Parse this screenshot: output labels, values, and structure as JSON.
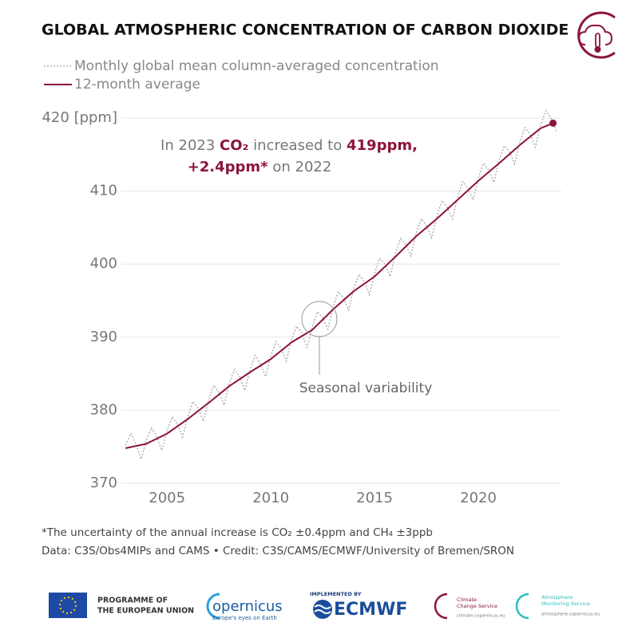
{
  "chart_data": {
    "type": "line",
    "title": "GLOBAL ATMOSPHERIC CONCENTRATION OF CARBON DIOXIDE",
    "series": [
      {
        "name": "Monthly global mean column-averaged concentration",
        "color": "#a8a8a8",
        "dashed": true,
        "x": [
          2003,
          2003.25,
          2003.5,
          2003.75,
          2004,
          2004.25,
          2004.5,
          2004.75,
          2005,
          2005.25,
          2005.5,
          2005.75,
          2006,
          2006.25,
          2006.5,
          2006.75,
          2007,
          2007.25,
          2007.5,
          2007.75,
          2008,
          2008.25,
          2008.5,
          2008.75,
          2009,
          2009.25,
          2009.5,
          2009.75,
          2010,
          2010.25,
          2010.5,
          2010.75,
          2011,
          2011.25,
          2011.5,
          2011.75,
          2012,
          2012.25,
          2012.5,
          2012.75,
          2013,
          2013.25,
          2013.5,
          2013.75,
          2014,
          2014.25,
          2014.5,
          2014.75,
          2015,
          2015.25,
          2015.5,
          2015.75,
          2016,
          2016.25,
          2016.5,
          2016.75,
          2017,
          2017.25,
          2017.5,
          2017.75,
          2018,
          2018.25,
          2018.5,
          2018.75,
          2019,
          2019.25,
          2019.5,
          2019.75,
          2020,
          2020.25,
          2020.5,
          2020.75,
          2021,
          2021.25,
          2021.5,
          2021.75,
          2022,
          2022.25,
          2022.5,
          2022.75,
          2023,
          2023.25,
          2023.5,
          2023.75
        ],
        "values": [
          375.2,
          376.8,
          375.4,
          373.3,
          375.8,
          377.6,
          376.4,
          374.5,
          377.2,
          379.1,
          378.1,
          376.3,
          379.2,
          381.2,
          380.2,
          378.5,
          381.4,
          383.4,
          382.5,
          380.7,
          383.7,
          385.6,
          384.6,
          382.7,
          385.6,
          387.5,
          386.4,
          384.6,
          387.4,
          389.4,
          388.5,
          386.7,
          389.7,
          391.5,
          390.5,
          388.6,
          391.4,
          393.5,
          392.7,
          391.1,
          394.2,
          396.2,
          395.4,
          393.7,
          396.7,
          398.6,
          397.6,
          395.8,
          398.7,
          400.8,
          400.0,
          398.3,
          401.4,
          403.5,
          402.7,
          401.1,
          404.2,
          406.2,
          405.3,
          403.6,
          406.6,
          408.7,
          407.8,
          406.2,
          409.2,
          411.3,
          410.4,
          408.8,
          411.8,
          413.8,
          412.9,
          411.2,
          414.2,
          416.2,
          415.4,
          413.7,
          416.7,
          418.7,
          417.8,
          416.0,
          419.0,
          421.0,
          420.0,
          418.2
        ]
      },
      {
        "name": "12-month average",
        "color": "#8b1538",
        "dashed": false,
        "x": [
          2003,
          2004,
          2005,
          2006,
          2007,
          2008,
          2009,
          2010,
          2011,
          2012,
          2013,
          2014,
          2015,
          2016,
          2017,
          2018,
          2019,
          2020,
          2021,
          2022,
          2023,
          2023.6
        ],
        "values": [
          374.8,
          375.4,
          376.8,
          378.8,
          381.0,
          383.3,
          385.2,
          387.0,
          389.3,
          391.0,
          393.8,
          396.3,
          398.3,
          401.0,
          403.8,
          406.2,
          408.8,
          411.4,
          413.8,
          416.3,
          418.6,
          419.3
        ]
      }
    ],
    "xlim": [
      2002.8,
      2024.0
    ],
    "xticks": [
      2005,
      2010,
      2015,
      2020
    ],
    "ylim": [
      370,
      420
    ],
    "yticks": [
      370,
      380,
      390,
      400,
      410,
      {
        "value": 420,
        "label": "420 [ppm]"
      }
    ],
    "grid": true,
    "annotation": {
      "line1": [
        "In 2023",
        "CO₂",
        "increased to",
        "419ppm,"
      ],
      "line2": [
        "+2.4ppm*",
        "on 2022"
      ]
    },
    "callout": "Seasonal variability",
    "footnote": "*The uncertainty of the annual increase is CO₂ ±0.4ppm and CH₄ ±3ppb",
    "credit": "Data: C3S/Obs4MIPs and CAMS • Credit: C3S/CAMS/ECMWF/University of Bremen/SRON"
  },
  "logos": {
    "eu": [
      "PROGRAMME OF",
      "THE EUROPEAN UNION"
    ],
    "copernicus": [
      "opernicus",
      "Europe's eyes on Earth"
    ],
    "ecmwf": [
      "IMPLEMENTED BY",
      "ECMWF"
    ],
    "c3s": [
      "Climate",
      "Change Service",
      "climate.copernicus.eu"
    ],
    "cams": [
      "Atmosphere",
      "Monitoring Service",
      "atmosphere.copernicus.eu"
    ]
  }
}
